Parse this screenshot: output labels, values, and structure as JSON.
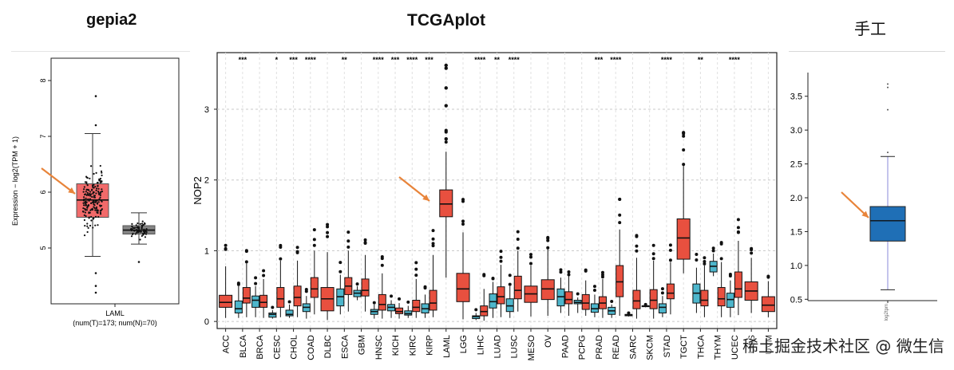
{
  "headings": {
    "left": "gepia2",
    "center": "TCGAplot",
    "right": "手工"
  },
  "watermark": "稀土掘金技术社区 @ 微生信",
  "colors": {
    "tumor": "#e8503f",
    "normal": "#4db6cc",
    "gepia_tumor": "#f26a6a",
    "gepia_normal": "#858585",
    "manual_box": "#1f6fb6",
    "arrow": "#e8843a",
    "median_manual": "#ff7f0e",
    "whisker_manual": "#8a8ad8"
  },
  "chart_data": [
    {
      "type": "box",
      "ylabel": "Expression − log2(TPM + 1)",
      "ylim": [
        4.0,
        8.4
      ],
      "yticks": [
        5,
        6,
        7,
        8
      ],
      "groups": [
        {
          "name": "T",
          "color": "#f26a6a",
          "q1": 5.55,
          "median": 5.86,
          "q3": 6.15,
          "whisker_low": 4.85,
          "whisker_high": 7.05,
          "points": 173
        },
        {
          "name": "N",
          "color": "#858585",
          "q1": 5.25,
          "median": 5.32,
          "q3": 5.4,
          "whisker_low": 5.07,
          "whisker_high": 5.63,
          "points": 70
        }
      ],
      "outliers_T": [
        7.72,
        7.2,
        4.55,
        4.32,
        4.2
      ],
      "outliers_N": [
        4.75
      ],
      "xlabel_line1": "LAML",
      "xlabel_line2": "(num(T)=173; num(N)=70)"
    },
    {
      "type": "box",
      "ylabel": "NOP2",
      "ylim": [
        -0.1,
        3.8
      ],
      "yticks": [
        0,
        1,
        2,
        3
      ],
      "categories": [
        "ACC",
        "BLCA",
        "BRCA",
        "CESC",
        "CHOL",
        "COAD",
        "DLBC",
        "ESCA",
        "GBM",
        "HNSC",
        "KICH",
        "KIRC",
        "KIRP",
        "LAML",
        "LGG",
        "LIHC",
        "LUAD",
        "LUSC",
        "MESO",
        "OV",
        "PAAD",
        "PCPG",
        "PRAD",
        "READ",
        "SARC",
        "SKCM",
        "STAD",
        "TGCT",
        "THCA",
        "THYM",
        "UCEC",
        "UCS",
        "UVM"
      ],
      "significance": [
        "",
        "***",
        "",
        "*",
        "***",
        "****",
        "",
        "**",
        "",
        "****",
        "***",
        "****",
        "***",
        "",
        "",
        "****",
        "**",
        "****",
        "",
        "",
        "",
        "",
        "***",
        "****",
        "",
        "",
        "****",
        "",
        "**",
        "",
        "****",
        "",
        ""
      ],
      "has_normal": [
        false,
        true,
        true,
        true,
        true,
        true,
        false,
        true,
        true,
        true,
        true,
        true,
        true,
        false,
        false,
        true,
        true,
        true,
        false,
        false,
        true,
        true,
        true,
        true,
        true,
        true,
        true,
        false,
        true,
        true,
        true,
        false,
        false
      ],
      "tumor_boxes": [
        [
          0.05,
          0.2,
          0.27,
          0.37,
          0.78
        ],
        [
          0.06,
          0.26,
          0.33,
          0.48,
          0.82
        ],
        [
          0.05,
          0.2,
          0.27,
          0.37,
          0.6
        ],
        [
          0.06,
          0.2,
          0.32,
          0.48,
          0.86
        ],
        [
          0.06,
          0.22,
          0.34,
          0.5,
          0.86
        ],
        [
          0.1,
          0.34,
          0.46,
          0.62,
          1.0
        ],
        [
          0.02,
          0.15,
          0.32,
          0.48,
          0.98
        ],
        [
          0.14,
          0.38,
          0.5,
          0.62,
          1.0
        ],
        [
          0.14,
          0.36,
          0.44,
          0.6,
          0.94
        ],
        [
          0.04,
          0.16,
          0.24,
          0.38,
          0.68
        ],
        [
          0.04,
          0.11,
          0.14,
          0.19,
          0.26
        ],
        [
          0.05,
          0.14,
          0.2,
          0.3,
          0.6
        ],
        [
          0.06,
          0.16,
          0.26,
          0.44,
          0.94
        ],
        [
          0.62,
          1.48,
          1.66,
          1.86,
          2.4
        ],
        [
          0.03,
          0.28,
          0.46,
          0.68,
          1.26
        ],
        [
          0.01,
          0.08,
          0.14,
          0.22,
          0.46
        ],
        [
          0.06,
          0.25,
          0.35,
          0.49,
          0.8
        ],
        [
          0.14,
          0.32,
          0.44,
          0.64,
          1.0
        ],
        [
          0.07,
          0.27,
          0.39,
          0.5,
          0.79
        ],
        [
          0.08,
          0.31,
          0.46,
          0.59,
          1.02
        ],
        [
          0.08,
          0.25,
          0.31,
          0.42,
          0.64
        ],
        [
          0.08,
          0.17,
          0.26,
          0.38,
          0.58
        ],
        [
          0.05,
          0.18,
          0.26,
          0.35,
          0.6
        ],
        [
          0.08,
          0.35,
          0.56,
          0.79,
          1.3
        ],
        [
          0.04,
          0.18,
          0.29,
          0.44,
          0.9
        ],
        [
          0.04,
          0.18,
          0.3,
          0.45,
          0.86
        ],
        [
          0.1,
          0.32,
          0.4,
          0.53,
          0.84
        ],
        [
          0.68,
          0.88,
          1.18,
          1.45,
          2.2
        ],
        [
          0.06,
          0.22,
          0.3,
          0.44,
          0.79
        ],
        [
          0.06,
          0.22,
          0.32,
          0.48,
          0.84
        ],
        [
          0.09,
          0.34,
          0.46,
          0.7,
          1.14
        ],
        [
          0.12,
          0.3,
          0.43,
          0.56,
          0.9
        ],
        [
          0.06,
          0.14,
          0.23,
          0.35,
          0.57
        ]
      ],
      "normal_boxes": [
        null,
        [
          0.05,
          0.12,
          0.18,
          0.29,
          0.5
        ],
        [
          0.06,
          0.2,
          0.3,
          0.36,
          0.5
        ],
        [
          0.04,
          0.06,
          0.1,
          0.12,
          0.16
        ],
        [
          0.05,
          0.08,
          0.1,
          0.16,
          0.24
        ],
        [
          0.04,
          0.14,
          0.2,
          0.25,
          0.36
        ],
        null,
        [
          0.1,
          0.22,
          0.35,
          0.46,
          0.66
        ],
        [
          0.3,
          0.35,
          0.4,
          0.44,
          0.5
        ],
        [
          0.04,
          0.1,
          0.14,
          0.17,
          0.24
        ],
        [
          0.05,
          0.15,
          0.2,
          0.24,
          0.3
        ],
        [
          0.05,
          0.09,
          0.11,
          0.15,
          0.22
        ],
        [
          0.05,
          0.12,
          0.18,
          0.25,
          0.38
        ],
        null,
        null,
        [
          0.02,
          0.04,
          0.07,
          0.08,
          0.12
        ],
        [
          0.05,
          0.19,
          0.28,
          0.39,
          0.56
        ],
        [
          0.05,
          0.14,
          0.22,
          0.32,
          0.5
        ],
        null,
        null,
        [
          0.12,
          0.22,
          0.35,
          0.46,
          0.62
        ],
        [
          0.12,
          0.25,
          0.27,
          0.3,
          0.34
        ],
        [
          0.06,
          0.13,
          0.18,
          0.25,
          0.38
        ],
        [
          0.05,
          0.1,
          0.15,
          0.2,
          0.24
        ],
        [
          0.07,
          0.08,
          0.09,
          0.1,
          0.1
        ],
        [
          0.2,
          0.21,
          0.22,
          0.22,
          0.22
        ],
        [
          0.06,
          0.12,
          0.2,
          0.25,
          0.36
        ],
        null,
        [
          0.12,
          0.26,
          0.4,
          0.53,
          0.76
        ],
        [
          0.64,
          0.7,
          0.78,
          0.85,
          0.96
        ],
        [
          0.06,
          0.2,
          0.31,
          0.4,
          0.58
        ],
        null,
        null
      ]
    },
    {
      "type": "box",
      "xlabel": "log2tpm",
      "ylim": [
        0.48,
        3.85
      ],
      "yticks": [
        0.5,
        1.0,
        1.5,
        2.0,
        2.5,
        3.0,
        3.5
      ],
      "box": {
        "q1": 1.36,
        "median": 1.66,
        "q3": 1.87,
        "whisker_low": 0.64,
        "whisker_high": 2.61
      },
      "outliers": [
        2.67,
        3.3,
        3.63,
        3.68
      ]
    }
  ]
}
